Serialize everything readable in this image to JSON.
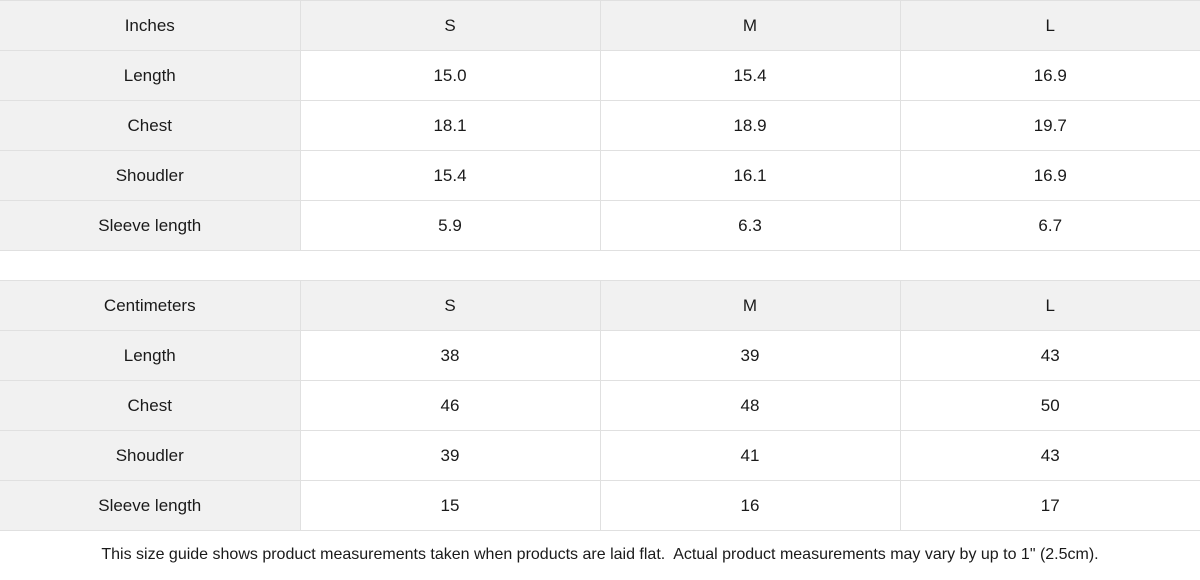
{
  "tables": [
    {
      "unit_header": "Inches",
      "size_headers": [
        "S",
        "M",
        "L"
      ],
      "rows": [
        {
          "label": "Length",
          "values": [
            "15.0",
            "15.4",
            "16.9"
          ]
        },
        {
          "label": "Chest",
          "values": [
            "18.1",
            "18.9",
            "19.7"
          ]
        },
        {
          "label": "Shoudler",
          "values": [
            "15.4",
            "16.1",
            "16.9"
          ]
        },
        {
          "label": "Sleeve length",
          "values": [
            "5.9",
            "6.3",
            "6.7"
          ]
        }
      ]
    },
    {
      "unit_header": "Centimeters",
      "size_headers": [
        "S",
        "M",
        "L"
      ],
      "rows": [
        {
          "label": "Length",
          "values": [
            "38",
            "39",
            "43"
          ]
        },
        {
          "label": "Chest",
          "values": [
            "46",
            "48",
            "50"
          ]
        },
        {
          "label": "Shoudler",
          "values": [
            "39",
            "41",
            "43"
          ]
        },
        {
          "label": "Sleeve length",
          "values": [
            "15",
            "16",
            "17"
          ]
        }
      ]
    }
  ],
  "footer": {
    "note": "This size guide shows product measurements taken when products are laid flat.  Actual product measurements may vary by up to 1\" (2.5cm)."
  },
  "colors": {
    "header_bg": "#f1f1f1",
    "border": "#e0e0e0",
    "text": "#1a1a1a",
    "background": "#ffffff"
  }
}
